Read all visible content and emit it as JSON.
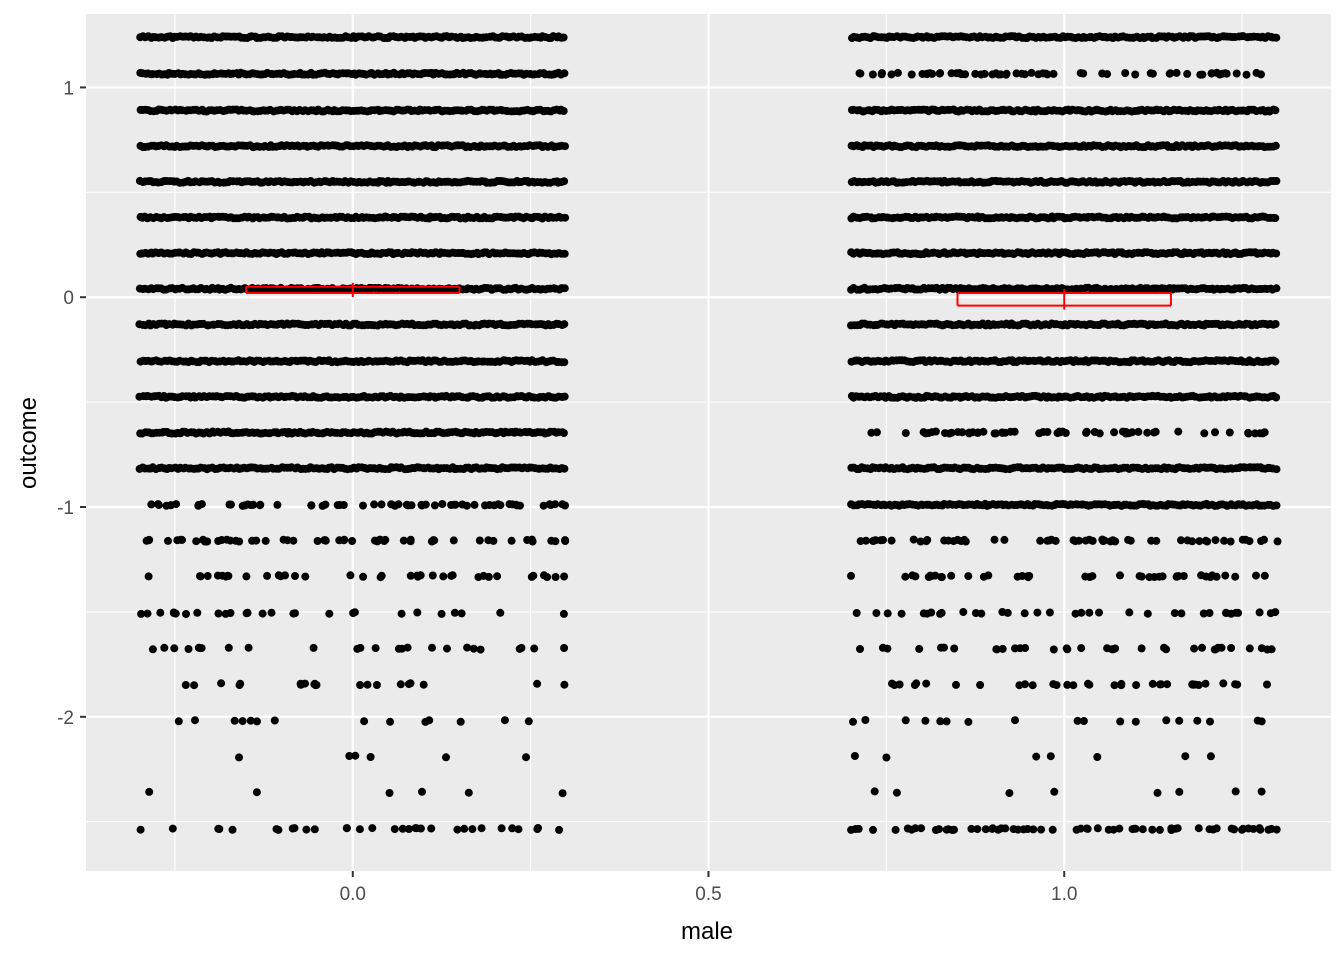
{
  "chart_data": {
    "type": "scatter",
    "title": "",
    "xlabel": "male",
    "ylabel": "outcome",
    "xlim": [
      -0.375,
      1.375
    ],
    "ylim": [
      -2.735,
      1.35
    ],
    "x_ticks": [
      0.0,
      0.5,
      1.0
    ],
    "x_tick_labels": [
      "0.0",
      "0.5",
      "1.0"
    ],
    "y_ticks": [
      -2,
      -1,
      0,
      1
    ],
    "y_tick_labels": [
      "-2",
      "-1",
      "0",
      "1"
    ],
    "grid": true,
    "jitter_width": 0.3,
    "outcome_levels": [
      1.24,
      1.065,
      0.89,
      0.72,
      0.55,
      0.38,
      0.21,
      0.04,
      -0.13,
      -0.305,
      -0.475,
      -0.645,
      -0.815,
      -0.99,
      -1.16,
      -1.33,
      -1.505,
      -1.675,
      -1.845,
      -2.02,
      -2.19,
      -2.36,
      -2.535
    ],
    "groups": [
      {
        "x": 0,
        "mean": 0.04,
        "ci_low": 0.02,
        "ci_high": 0.05,
        "coverage": [
          1,
          1,
          1,
          1,
          1,
          1,
          1,
          1,
          1,
          1,
          1,
          1,
          1,
          0.95,
          0.8,
          0.55,
          0.4,
          0.35,
          0.3,
          0.2,
          0.08,
          0.08,
          0.45
        ]
      },
      {
        "x": 1,
        "mean": -0.01,
        "ci_low": -0.04,
        "ci_high": 0.02,
        "coverage": [
          1,
          0.9,
          1,
          1,
          1,
          1,
          1,
          1,
          1,
          1,
          1,
          0.85,
          1,
          1,
          0.85,
          0.6,
          0.5,
          0.5,
          0.5,
          0.25,
          0.1,
          0.12,
          0.9
        ]
      }
    ],
    "colors": {
      "panel_background": "#ebebeb",
      "grid_line": "#ffffff",
      "point": "#000000",
      "errorbar": "#ff0000"
    }
  }
}
